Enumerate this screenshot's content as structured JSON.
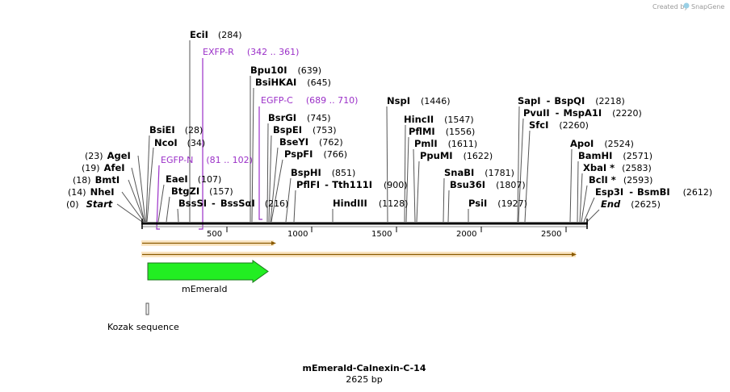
{
  "credit": {
    "prefix": "Created by",
    "brand": "SnapGene"
  },
  "title": "mEmerald-Calnexin-C-14",
  "subtitle": "2625 bp",
  "total_bp": 2625,
  "axis_ticks": [
    "500",
    "1000",
    "1500",
    "2000",
    "2500"
  ],
  "features": {
    "mEmerald": "mEmerald",
    "kozak": "Kozak sequence"
  },
  "colors": {
    "primer": "#9b30c8",
    "gfp": "#22ee22",
    "orf": "#f5a623"
  },
  "left_sites": [
    {
      "name": "AgeI",
      "pos": "(23)"
    },
    {
      "name": "AfeI",
      "pos": "(19)"
    },
    {
      "name": "BmtI",
      "pos": "(18)"
    },
    {
      "name": "NheI",
      "pos": "(14)"
    },
    {
      "name": "Start",
      "pos": "(0)"
    }
  ],
  "sites": {
    "ecii": {
      "name": "EciI",
      "pos": "(284)"
    },
    "bpu10i": {
      "name": "Bpu10I",
      "pos": "(639)"
    },
    "bsihkai": {
      "name": "BsiHKAI",
      "pos": "(645)"
    },
    "bsiei": {
      "name": "BsiEI",
      "pos": "(28)"
    },
    "ncoi": {
      "name": "NcoI",
      "pos": "(34)"
    },
    "eaei": {
      "name": "EaeI",
      "pos": "(107)"
    },
    "btgzi": {
      "name": "BtgZI",
      "pos": "(157)"
    },
    "bsssi": {
      "name": "BssSI",
      "sep": "-",
      "name2": "BssSαI",
      "pos": "(216)"
    },
    "bsrgi": {
      "name": "BsrGI",
      "pos": "(745)"
    },
    "bspei": {
      "name": "BspEI",
      "pos": "(753)"
    },
    "bseyi": {
      "name": "BseYI",
      "pos": "(762)"
    },
    "pspfi": {
      "name": "PspFI",
      "pos": "(766)"
    },
    "bsphi": {
      "name": "BspHI",
      "pos": "(851)"
    },
    "pflfi": {
      "name": "PflFI",
      "sep": "-",
      "name2": "Tth111I",
      "pos": "(900)"
    },
    "hindiii": {
      "name": "HindIII",
      "pos": "(1128)"
    },
    "nspi": {
      "name": "NspI",
      "pos": "(1446)"
    },
    "hincii": {
      "name": "HincII",
      "pos": "(1547)"
    },
    "pflmi": {
      "name": "PflMI",
      "pos": "(1556)"
    },
    "pmli": {
      "name": "PmlI",
      "pos": "(1611)"
    },
    "ppumi": {
      "name": "PpuMI",
      "pos": "(1622)"
    },
    "snabi": {
      "name": "SnaBI",
      "pos": "(1781)"
    },
    "bsu36i": {
      "name": "Bsu36I",
      "pos": "(1807)"
    },
    "psii": {
      "name": "PsiI",
      "pos": "(1927)"
    },
    "sapi": {
      "name": "SapI",
      "sep": "-",
      "name2": "BspQI",
      "pos": "(2218)"
    },
    "pvuii": {
      "name": "PvuII",
      "sep": "-",
      "name2": "MspA1I",
      "pos": "(2220)"
    },
    "sfci": {
      "name": "SfcI",
      "pos": "(2260)"
    },
    "apoi": {
      "name": "ApoI",
      "pos": "(2524)"
    },
    "bamhi": {
      "name": "BamHI",
      "pos": "(2571)"
    },
    "xbai": {
      "name": "XbaI *",
      "pos": "(2583)"
    },
    "bcli": {
      "name": "BclI *",
      "pos": "(2593)"
    },
    "esp3i": {
      "name": "Esp3I",
      "sep": "-",
      "name2": "BsmBI",
      "pos": "(2612)"
    },
    "end": {
      "name": "End",
      "pos": "(2625)"
    }
  },
  "primers": {
    "exfpr": {
      "name": "EXFP-R",
      "range": "(342 .. 361)"
    },
    "egfpc": {
      "name": "EGFP-C",
      "range": "(689 .. 710)"
    },
    "egfpn": {
      "name": "EGFP-N",
      "range": "(81 .. 102)"
    }
  }
}
